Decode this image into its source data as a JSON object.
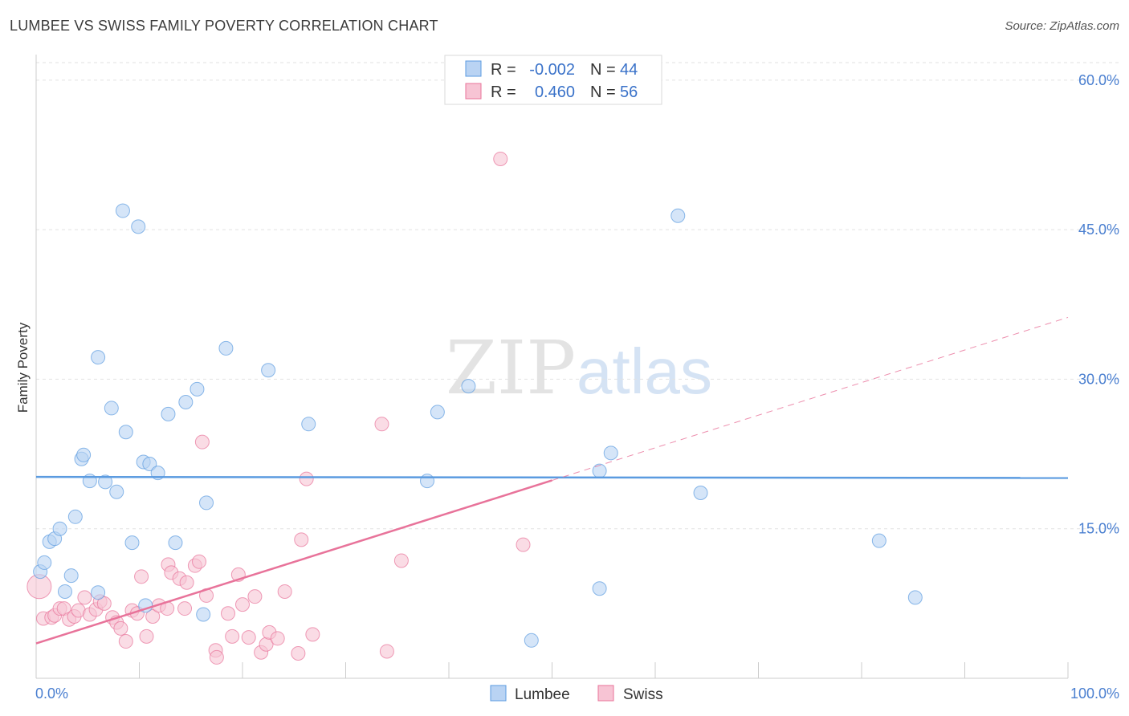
{
  "header": {
    "title": "LUMBEE VS SWISS FAMILY POVERTY CORRELATION CHART",
    "source": "Source: ZipAtlas.com"
  },
  "watermark": {
    "zip": "ZIP",
    "atlas": "atlas"
  },
  "chart_data": {
    "type": "scatter",
    "ylabel": "Family Poverty",
    "xlim": [
      0,
      100
    ],
    "ylim": [
      0,
      62
    ],
    "y_ticks": [
      {
        "value": 15,
        "label": "15.0%"
      },
      {
        "value": 30,
        "label": "30.0%"
      },
      {
        "value": 45,
        "label": "45.0%"
      },
      {
        "value": 60,
        "label": "60.0%"
      }
    ],
    "x_tick_labels": {
      "min": "0.0%",
      "max": "100.0%"
    },
    "grid": true,
    "legend_position": "top-center",
    "legend_rows": [
      {
        "series": "Lumbee",
        "r_label": "R =",
        "r_value": "-0.002",
        "n_label": "N =",
        "n_value": "44"
      },
      {
        "series": "Swiss",
        "r_label": "R =",
        "r_value": "0.460",
        "n_label": "N =",
        "n_value": "56"
      }
    ],
    "series": [
      {
        "name": "Lumbee",
        "color": "#5b9be0",
        "fill": "#b9d3f3",
        "trend": {
          "x": [
            0,
            100
          ],
          "y": [
            20.2,
            20.1
          ],
          "dashed_from": null
        },
        "points": [
          [
            0.4,
            10.7
          ],
          [
            0.8,
            11.6
          ],
          [
            1.3,
            13.7
          ],
          [
            1.8,
            14.0
          ],
          [
            2.3,
            15.0
          ],
          [
            2.8,
            8.7
          ],
          [
            3.4,
            10.3
          ],
          [
            3.8,
            16.2
          ],
          [
            4.4,
            22.0
          ],
          [
            4.6,
            22.4
          ],
          [
            5.2,
            19.8
          ],
          [
            6.0,
            8.6
          ],
          [
            6.0,
            32.2
          ],
          [
            6.7,
            19.7
          ],
          [
            7.3,
            27.1
          ],
          [
            7.8,
            18.7
          ],
          [
            8.4,
            46.9
          ],
          [
            8.7,
            24.7
          ],
          [
            9.3,
            13.6
          ],
          [
            9.9,
            45.3
          ],
          [
            10.4,
            21.7
          ],
          [
            11.0,
            21.5
          ],
          [
            10.6,
            7.3
          ],
          [
            11.8,
            20.6
          ],
          [
            12.8,
            26.5
          ],
          [
            13.5,
            13.6
          ],
          [
            14.5,
            27.7
          ],
          [
            15.6,
            29.0
          ],
          [
            16.2,
            6.4
          ],
          [
            16.5,
            17.6
          ],
          [
            18.4,
            33.1
          ],
          [
            22.5,
            30.9
          ],
          [
            26.4,
            25.5
          ],
          [
            37.9,
            19.8
          ],
          [
            38.9,
            26.7
          ],
          [
            41.9,
            29.3
          ],
          [
            48.0,
            3.8
          ],
          [
            54.6,
            20.8
          ],
          [
            54.6,
            9.0
          ],
          [
            55.7,
            22.6
          ],
          [
            62.2,
            46.4
          ],
          [
            64.4,
            18.6
          ],
          [
            81.7,
            13.8
          ],
          [
            85.2,
            8.1
          ]
        ]
      },
      {
        "name": "Swiss",
        "color": "#e8739a",
        "fill": "#f7c4d4",
        "trend": {
          "x": [
            0,
            100
          ],
          "y": [
            3.5,
            36.2
          ],
          "dashed_from": 50
        },
        "points": [
          [
            0.3,
            9.2
          ],
          [
            0.7,
            6.0
          ],
          [
            1.5,
            6.1
          ],
          [
            1.8,
            6.3
          ],
          [
            2.3,
            7.0
          ],
          [
            2.7,
            7.0
          ],
          [
            3.2,
            5.9
          ],
          [
            3.7,
            6.2
          ],
          [
            4.1,
            6.8
          ],
          [
            4.7,
            8.1
          ],
          [
            5.2,
            6.4
          ],
          [
            5.8,
            6.9
          ],
          [
            6.2,
            7.7
          ],
          [
            6.6,
            7.5
          ],
          [
            7.4,
            6.1
          ],
          [
            7.8,
            5.6
          ],
          [
            8.2,
            5.0
          ],
          [
            8.7,
            3.7
          ],
          [
            9.3,
            6.8
          ],
          [
            9.8,
            6.5
          ],
          [
            10.2,
            10.2
          ],
          [
            10.7,
            4.2
          ],
          [
            11.3,
            6.2
          ],
          [
            11.9,
            7.3
          ],
          [
            12.7,
            7.0
          ],
          [
            12.8,
            11.4
          ],
          [
            13.1,
            10.6
          ],
          [
            13.9,
            10.0
          ],
          [
            14.4,
            7.0
          ],
          [
            14.6,
            9.6
          ],
          [
            15.4,
            11.3
          ],
          [
            15.8,
            11.7
          ],
          [
            16.1,
            23.7
          ],
          [
            16.5,
            8.3
          ],
          [
            17.4,
            2.8
          ],
          [
            17.5,
            2.1
          ],
          [
            18.6,
            6.5
          ],
          [
            19.0,
            4.2
          ],
          [
            19.6,
            10.4
          ],
          [
            20.0,
            7.4
          ],
          [
            20.6,
            4.1
          ],
          [
            21.2,
            8.2
          ],
          [
            21.8,
            2.6
          ],
          [
            22.3,
            3.4
          ],
          [
            22.6,
            4.6
          ],
          [
            23.4,
            4.0
          ],
          [
            24.1,
            8.7
          ],
          [
            25.4,
            2.5
          ],
          [
            25.7,
            13.9
          ],
          [
            26.2,
            20.0
          ],
          [
            26.8,
            4.4
          ],
          [
            33.5,
            25.5
          ],
          [
            34.0,
            2.7
          ],
          [
            35.4,
            11.8
          ],
          [
            45.0,
            52.1
          ],
          [
            47.2,
            13.4
          ]
        ]
      }
    ]
  }
}
